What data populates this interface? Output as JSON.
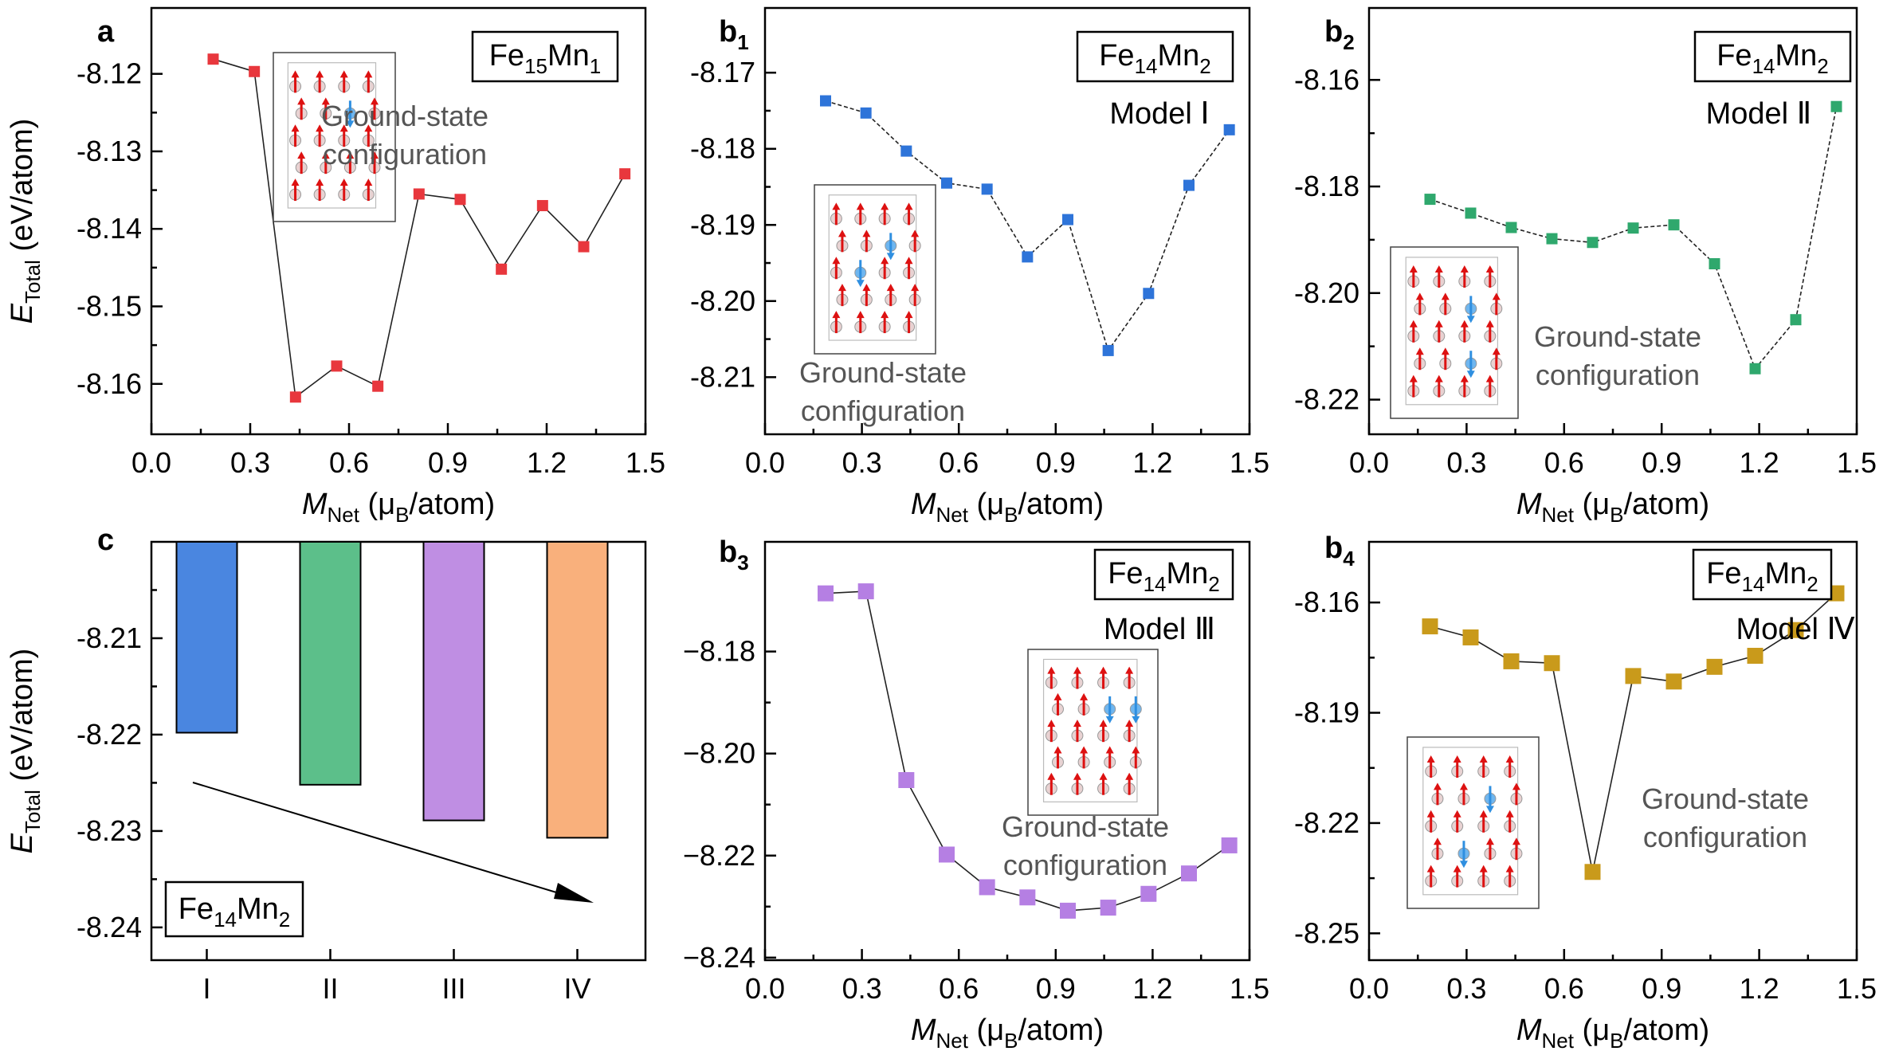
{
  "chart_data": [
    {
      "id": "a",
      "type": "scatter",
      "panel_label": "a",
      "panel_sub": "",
      "formula": {
        "el1": "Fe",
        "n1": "15",
        "el2": "Mn",
        "n2": "1"
      },
      "model": "",
      "ground_state": [
        "Ground-state",
        "configuration"
      ],
      "color": "#e8373d",
      "dashed": false,
      "xlim": [
        0.0,
        1.5
      ],
      "ylim": [
        -8.1665,
        -8.1115
      ],
      "xticks": [
        0.0,
        0.3,
        0.6,
        0.9,
        1.2,
        1.5
      ],
      "xtick_labels": [
        "0.0",
        "0.3",
        "0.6",
        "0.9",
        "1.2",
        "1.5"
      ],
      "yticks": [
        -8.16,
        -8.15,
        -8.14,
        -8.13,
        -8.12
      ],
      "ytick_labels": [
        "-8.16",
        "-8.15",
        "-8.14",
        "-8.13",
        "-8.12"
      ],
      "x": [
        0.1875,
        0.3125,
        0.4375,
        0.5625,
        0.6875,
        0.8125,
        0.9375,
        1.0625,
        1.1875,
        1.3125,
        1.4375
      ],
      "y": [
        -8.1181,
        -8.1197,
        -8.1617,
        -8.1577,
        -8.1603,
        -8.1355,
        -8.1362,
        -8.1452,
        -8.137,
        -8.1423,
        -8.1329
      ],
      "xlabel": {
        "main": "M",
        "sub": "Net",
        "rest": " (μB/atom)"
      },
      "ylabel": {
        "main": "E",
        "sub": "Total",
        "rest": " (eV/atom)"
      }
    },
    {
      "id": "b1",
      "type": "scatter",
      "panel_label": "b",
      "panel_sub": "1",
      "formula": {
        "el1": "Fe",
        "n1": "14",
        "el2": "Mn",
        "n2": "2"
      },
      "model": "Model Ⅰ",
      "ground_state": [
        "Ground-state",
        "configuration"
      ],
      "color": "#2e74d9",
      "dashed": true,
      "xlim": [
        0.0,
        1.5
      ],
      "ylim": [
        -8.2175,
        -8.1615
      ],
      "xticks": [
        0.0,
        0.3,
        0.6,
        0.9,
        1.2,
        1.5
      ],
      "xtick_labels": [
        "0.0",
        "0.3",
        "0.6",
        "0.9",
        "1.2",
        "1.5"
      ],
      "yticks": [
        -8.21,
        -8.2,
        -8.19,
        -8.18,
        -8.17
      ],
      "ytick_labels": [
        "-8.21",
        "-8.20",
        "-8.19",
        "-8.18",
        "-8.17"
      ],
      "x": [
        0.1875,
        0.3125,
        0.4375,
        0.5625,
        0.6875,
        0.8125,
        0.9375,
        1.0625,
        1.1875,
        1.3125,
        1.4375
      ],
      "y": [
        -8.1737,
        -8.1753,
        -8.1803,
        -8.1845,
        -8.1853,
        -8.1942,
        -8.1893,
        -8.2065,
        -8.199,
        -8.1848,
        -8.1775
      ],
      "xlabel": {
        "main": "M",
        "sub": "Net",
        "rest": " (μB/atom)"
      },
      "ylabel": {
        "main": "",
        "sub": "",
        "rest": ""
      }
    },
    {
      "id": "b2",
      "type": "scatter",
      "panel_label": "b",
      "panel_sub": "2",
      "formula": {
        "el1": "Fe",
        "n1": "14",
        "el2": "Mn",
        "n2": "2"
      },
      "model": "Model Ⅱ",
      "ground_state": [
        "Ground-state",
        "configuration"
      ],
      "color": "#2fa86d",
      "dashed": true,
      "xlim": [
        0.0,
        1.5
      ],
      "ylim": [
        -8.2265,
        -8.1465
      ],
      "xticks": [
        0.0,
        0.3,
        0.6,
        0.9,
        1.2,
        1.5
      ],
      "xtick_labels": [
        "0.0",
        "0.3",
        "0.6",
        "0.9",
        "1.2",
        "1.5"
      ],
      "yticks": [
        -8.22,
        -8.2,
        -8.18,
        -8.16
      ],
      "ytick_labels": [
        "-8.22",
        "-8.20",
        "-8.18",
        "-8.16"
      ],
      "x": [
        0.1875,
        0.3125,
        0.4375,
        0.5625,
        0.6875,
        0.8125,
        0.9375,
        1.0625,
        1.1875,
        1.3125,
        1.4375
      ],
      "y": [
        -8.1824,
        -8.185,
        -8.1877,
        -8.1898,
        -8.1905,
        -8.1878,
        -8.1872,
        -8.1945,
        -8.2142,
        -8.205,
        -8.165
      ],
      "xlabel": {
        "main": "M",
        "sub": "Net",
        "rest": " (μB/atom)"
      },
      "ylabel": {
        "main": "",
        "sub": "",
        "rest": ""
      }
    },
    {
      "id": "c",
      "type": "bar",
      "panel_label": "c",
      "panel_sub": "",
      "formula": {
        "el1": "Fe",
        "n1": "14",
        "el2": "Mn",
        "n2": "2"
      },
      "categories": [
        "I",
        "II",
        "III",
        "IV"
      ],
      "values": [
        -8.2198,
        -8.2252,
        -8.2289,
        -8.2307
      ],
      "colors": [
        "#4a86e0",
        "#5cbf8a",
        "#bf8ee3",
        "#f9b07c"
      ],
      "ylim": [
        -8.2434,
        -8.2
      ],
      "yticks": [
        -8.24,
        -8.23,
        -8.22,
        -8.21
      ],
      "ytick_labels": [
        "-8.24",
        "-8.23",
        "-8.22",
        "-8.21"
      ],
      "arrow": "decreasing energy from I to IV",
      "ylabel": {
        "main": "E",
        "sub": "Total",
        "rest": " (eV/atom)"
      }
    },
    {
      "id": "b3",
      "type": "scatter",
      "panel_label": "b",
      "panel_sub": "3",
      "formula": {
        "el1": "Fe",
        "n1": "14",
        "el2": "Mn",
        "n2": "2"
      },
      "model": "Model Ⅲ",
      "ground_state": [
        "Ground-state",
        "configuration"
      ],
      "color": "#b57fe3",
      "dashed": false,
      "xlim": [
        0.0,
        1.5
      ],
      "ylim": [
        -8.2405,
        -8.1585
      ],
      "xticks": [
        0.0,
        0.3,
        0.6,
        0.9,
        1.2,
        1.5
      ],
      "xtick_labels": [
        "0.0",
        "0.3",
        "0.6",
        "0.9",
        "1.2",
        "1.5"
      ],
      "yticks": [
        -8.24,
        -8.22,
        -8.2,
        -8.18
      ],
      "ytick_labels": [
        "−8.24",
        "−8.22",
        "−8.20",
        "−8.18"
      ],
      "x": [
        0.1875,
        0.3125,
        0.4375,
        0.5625,
        0.6875,
        0.8125,
        0.9375,
        1.0625,
        1.1875,
        1.3125,
        1.4375
      ],
      "y": [
        -8.1686,
        -8.1682,
        -8.2052,
        -8.2198,
        -8.2262,
        -8.2282,
        -8.2308,
        -8.2302,
        -8.2275,
        -8.2235,
        -8.218
      ],
      "xlabel": {
        "main": "M",
        "sub": "Net",
        "rest": " (μB/atom)"
      },
      "ylabel": {
        "main": "",
        "sub": "",
        "rest": ""
      }
    },
    {
      "id": "b4",
      "type": "scatter",
      "panel_label": "b",
      "panel_sub": "4",
      "formula": {
        "el1": "Fe",
        "n1": "14",
        "el2": "Mn",
        "n2": "2"
      },
      "model": "Model Ⅳ",
      "ground_state": [
        "Ground-state",
        "configuration"
      ],
      "color": "#c99a1b",
      "dashed": false,
      "xlim": [
        0.0,
        1.5
      ],
      "ylim": [
        -8.2573,
        -8.1435
      ],
      "xticks": [
        0.0,
        0.3,
        0.6,
        0.9,
        1.2,
        1.5
      ],
      "xtick_labels": [
        "0.0",
        "0.3",
        "0.6",
        "0.9",
        "1.2",
        "1.5"
      ],
      "yticks": [
        -8.25,
        -8.22,
        -8.19,
        -8.16
      ],
      "ytick_labels": [
        "-8.25",
        "-8.22",
        "-8.19",
        "-8.16"
      ],
      "x": [
        0.1875,
        0.3125,
        0.4375,
        0.5625,
        0.6875,
        0.8125,
        0.9375,
        1.0625,
        1.1875,
        1.3125,
        1.4375
      ],
      "y": [
        -8.1665,
        -8.1695,
        -8.176,
        -8.1765,
        -8.2333,
        -8.18,
        -8.1815,
        -8.1775,
        -8.1745,
        -8.1675,
        -8.1575
      ],
      "xlabel": {
        "main": "M",
        "sub": "Net",
        "rest": " (μB/atom)"
      },
      "ylabel": {
        "main": "",
        "sub": "",
        "rest": ""
      }
    }
  ]
}
